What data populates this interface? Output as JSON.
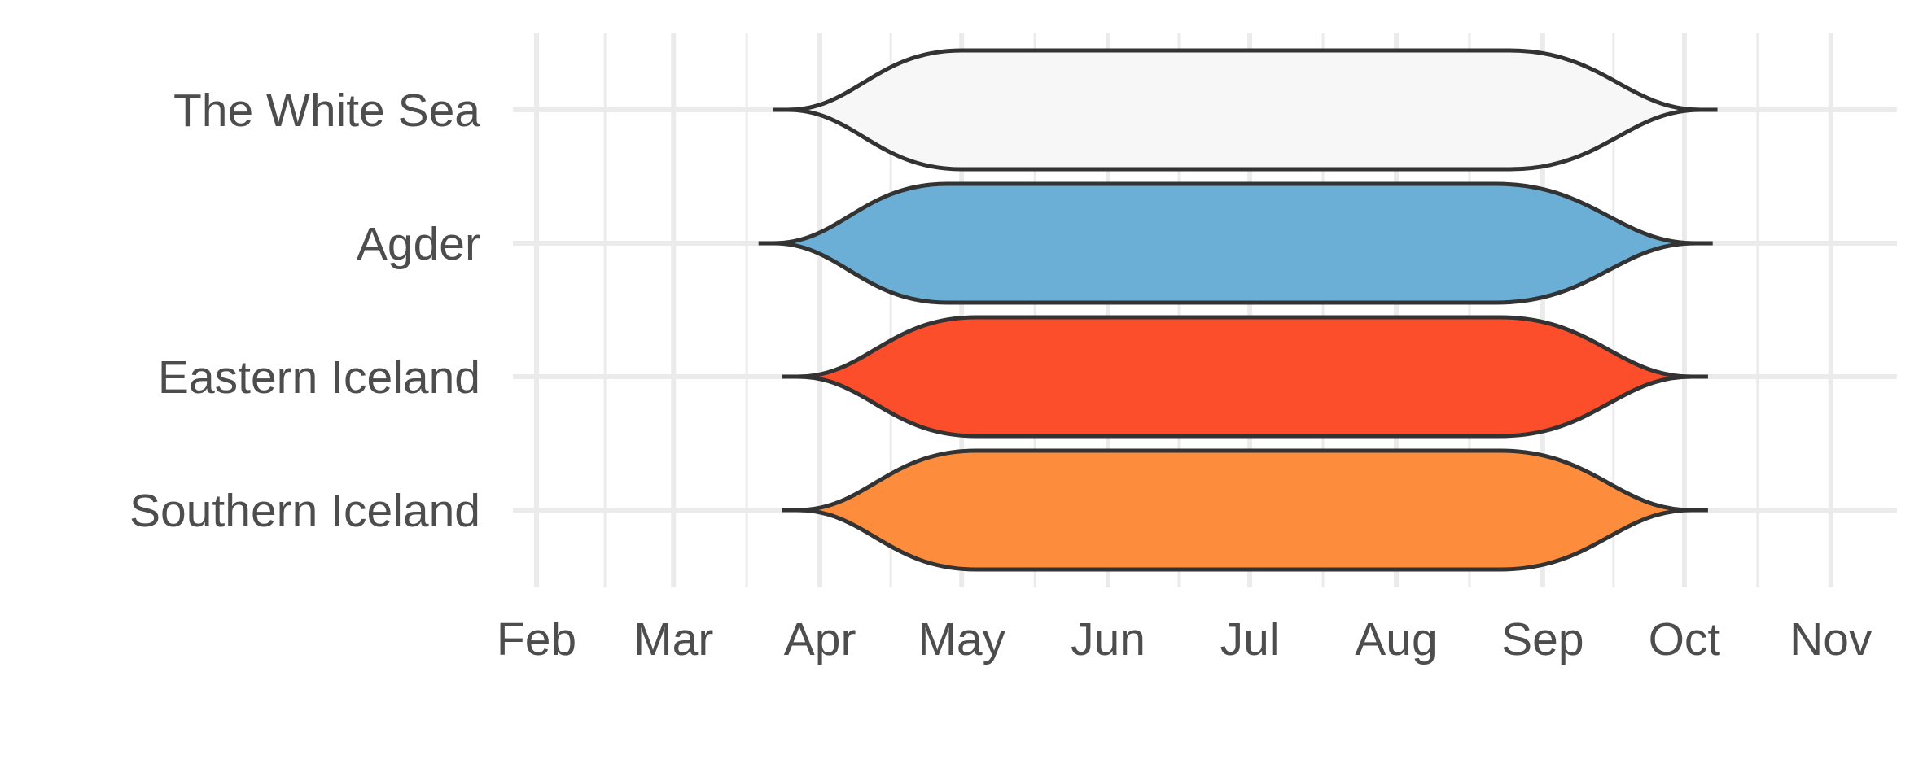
{
  "chart_data": {
    "type": "violin",
    "orientation": "horizontal",
    "x_axis": {
      "type": "date",
      "ticks": [
        "Feb",
        "Mar",
        "Apr",
        "May",
        "Jun",
        "Jul",
        "Aug",
        "Sep",
        "Oct",
        "Nov"
      ],
      "range": [
        "2000-01-27",
        "2000-11-15"
      ]
    },
    "categories": [
      "The White Sea",
      "Agder",
      "Eastern Iceland",
      "Southern Iceland"
    ],
    "series": [
      {
        "category": "The White Sea",
        "fill": "#f7f7f7",
        "start": "2000-03-22",
        "plateau_start": "2000-05-01",
        "plateau_end": "2000-08-25",
        "end": "2000-10-08"
      },
      {
        "category": "Agder",
        "fill": "#6baed6",
        "start": "2000-03-19",
        "plateau_start": "2000-04-28",
        "plateau_end": "2000-08-22",
        "end": "2000-10-07"
      },
      {
        "category": "Eastern Iceland",
        "fill": "#fc4e2a",
        "start": "2000-03-24",
        "plateau_start": "2000-05-04",
        "plateau_end": "2000-08-23",
        "end": "2000-10-06"
      },
      {
        "category": "Southern Iceland",
        "fill": "#fd8d3c",
        "start": "2000-03-24",
        "plateau_start": "2000-05-04",
        "plateau_end": "2000-08-23",
        "end": "2000-10-06"
      }
    ],
    "grid": true,
    "legend": "none"
  }
}
